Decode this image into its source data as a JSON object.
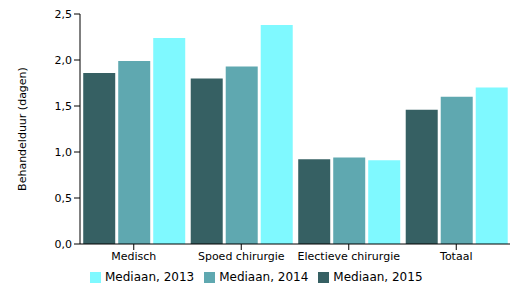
{
  "chart_data": {
    "type": "bar",
    "y_label": "Behandelduur (dagen)",
    "categories": [
      "Medisch",
      "Spoed chirurgie",
      "Electieve chirurgie",
      "Totaal"
    ],
    "series": [
      {
        "name": "Mediaan, 2015",
        "color": "#366063",
        "values": [
          1.86,
          1.8,
          0.92,
          1.46
        ]
      },
      {
        "name": "Mediaan, 2014",
        "color": "#5fa8b0",
        "values": [
          1.99,
          1.93,
          0.94,
          1.6
        ]
      },
      {
        "name": "Mediaan, 2013",
        "color": "#7ff9ff",
        "values": [
          2.24,
          2.38,
          0.91,
          1.7
        ]
      }
    ],
    "ylim": [
      0,
      2.5
    ],
    "yticks": [
      {
        "value": 0,
        "label": "0,0"
      },
      {
        "value": 0.5,
        "label": "0,5"
      },
      {
        "value": 1,
        "label": "1,0"
      },
      {
        "value": 1.5,
        "label": "1,5"
      },
      {
        "value": 2,
        "label": "2,0"
      },
      {
        "value": 2.5,
        "label": "2,5"
      }
    ],
    "grid": false,
    "legend": "bottom"
  }
}
